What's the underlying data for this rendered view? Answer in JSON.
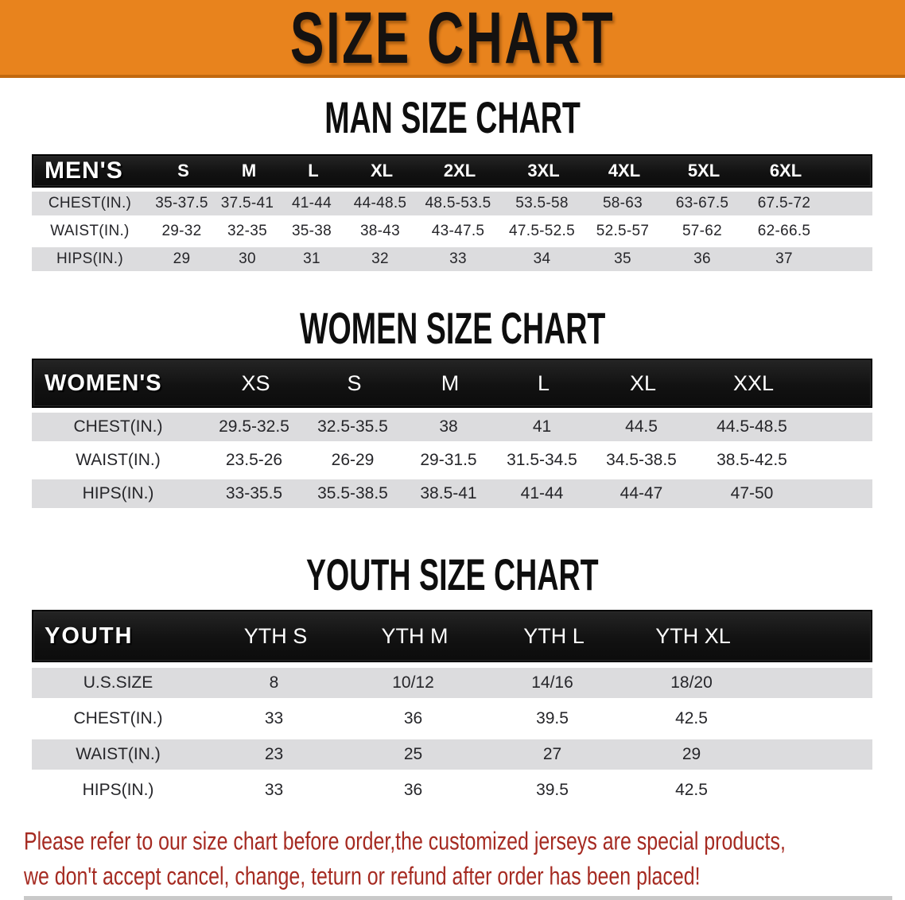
{
  "banner": {
    "title": "SIZE CHART"
  },
  "men": {
    "section_title": "MAN SIZE CHART",
    "header_label": "MEN'S",
    "columns": [
      "S",
      "M",
      "L",
      "XL",
      "2XL",
      "3XL",
      "4XL",
      "5XL",
      "6XL"
    ],
    "rows": [
      {
        "label": "CHEST(IN.)",
        "values": [
          "35-37.5",
          "37.5-41",
          "41-44",
          "44-48.5",
          "48.5-53.5",
          "53.5-58",
          "58-63",
          "63-67.5",
          "67.5-72"
        ]
      },
      {
        "label": "WAIST(IN.)",
        "values": [
          "29-32",
          "32-35",
          "35-38",
          "38-43",
          "43-47.5",
          "47.5-52.5",
          "52.5-57",
          "57-62",
          "62-66.5"
        ]
      },
      {
        "label": "HIPS(IN.)",
        "values": [
          "29",
          "30",
          "31",
          "32",
          "33",
          "34",
          "35",
          "36",
          "37"
        ]
      }
    ]
  },
  "women": {
    "section_title": "WOMEN SIZE CHART",
    "header_label": "WOMEN'S",
    "columns": [
      "XS",
      "S",
      "M",
      "L",
      "XL",
      "XXL"
    ],
    "rows": [
      {
        "label": "CHEST(IN.)",
        "values": [
          "29.5-32.5",
          "32.5-35.5",
          "38",
          "41",
          "44.5",
          "44.5-48.5"
        ]
      },
      {
        "label": "WAIST(IN.)",
        "values": [
          "23.5-26",
          "26-29",
          "29-31.5",
          "31.5-34.5",
          "34.5-38.5",
          "38.5-42.5"
        ]
      },
      {
        "label": "HIPS(IN.)",
        "values": [
          "33-35.5",
          "35.5-38.5",
          "38.5-41",
          "41-44",
          "44-47",
          "47-50"
        ]
      }
    ]
  },
  "youth": {
    "section_title": "YOUTH SIZE CHART",
    "header_label": "YOUTH",
    "columns": [
      "YTH S",
      "YTH M",
      "YTH L",
      "YTH XL"
    ],
    "rows": [
      {
        "label": "U.S.SIZE",
        "values": [
          "8",
          "10/12",
          "14/16",
          "18/20"
        ]
      },
      {
        "label": "CHEST(IN.)",
        "values": [
          "33",
          "36",
          "39.5",
          "42.5"
        ]
      },
      {
        "label": "WAIST(IN.)",
        "values": [
          "23",
          "25",
          "27",
          "29"
        ]
      },
      {
        "label": "HIPS(IN.)",
        "values": [
          "33",
          "36",
          "39.5",
          "42.5"
        ]
      }
    ]
  },
  "notice": {
    "line1": "Please refer to our size chart before order,the customized jerseys are special products,",
    "line2": "we don't accept cancel, change, teturn or refund after order has been placed!"
  },
  "colors": {
    "banner_orange": "#E8831D",
    "banner_border": "#C2690F",
    "header_black": "#141414",
    "row_gray": "#DCDCDE",
    "notice_red": "#A52A21"
  }
}
